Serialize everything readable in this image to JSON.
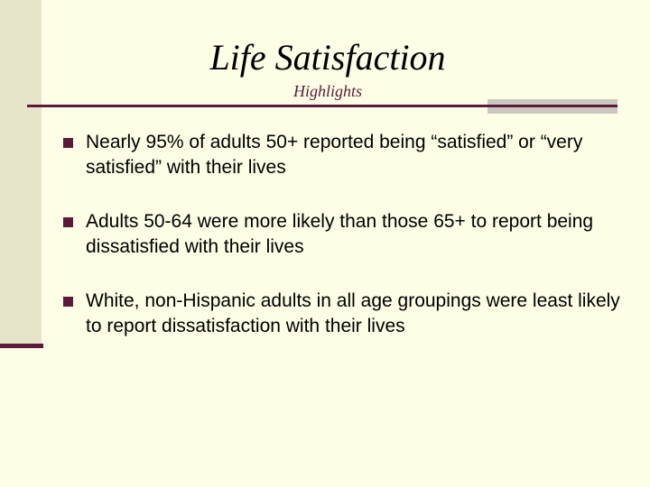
{
  "header": {
    "title": "Life Satisfaction",
    "subtitle": "Highlights"
  },
  "bullets": [
    "Nearly 95% of adults 50+ reported being “satisfied” or “very satisfied” with their lives",
    "Adults 50-64 were more likely than those 65+ to report being dissatisfied with their lives",
    "White, non-Hispanic adults in all age groupings were least likely to report dissatisfaction with their lives"
  ]
}
